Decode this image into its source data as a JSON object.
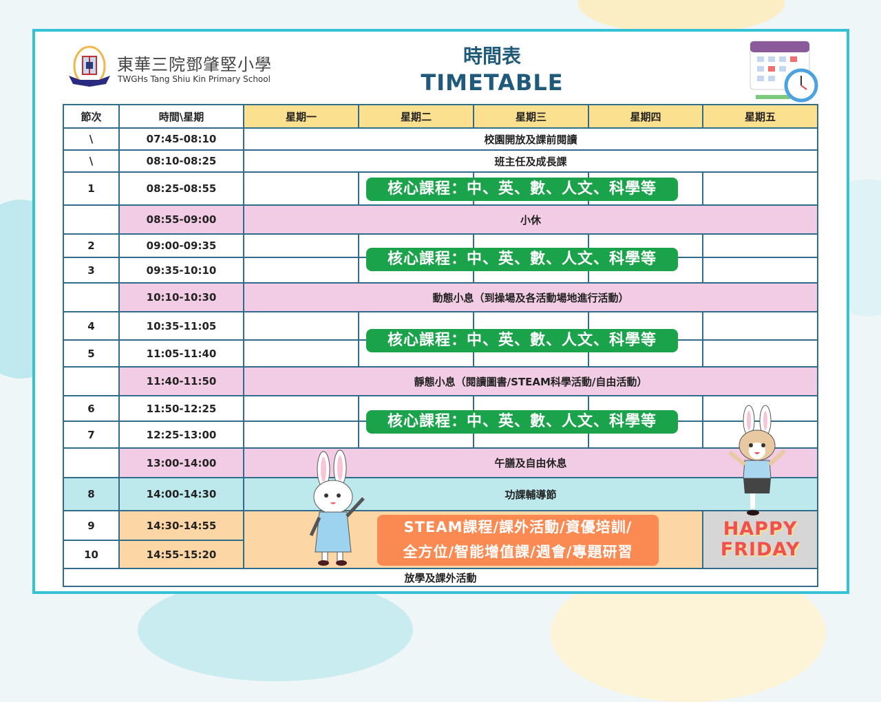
{
  "school": {
    "name_zh": "東華三院鄧肇堅小學",
    "name_en": "TWGHs Tang Shiu Kin Primary School"
  },
  "title": {
    "zh": "時間表",
    "en": "TIMETABLE"
  },
  "header": {
    "period": "節次",
    "time": "時間\\星期",
    "days": [
      "星期一",
      "星期二",
      "星期三",
      "星期四",
      "星期五"
    ]
  },
  "rows": [
    {
      "period": "\\",
      "time": "07:45-08:10",
      "activity": "校園開放及課前閱讀"
    },
    {
      "period": "\\",
      "time": "08:10-08:25",
      "activity": "班主任及成長課"
    },
    {
      "period": "1",
      "time": "08:25-08:55"
    },
    {
      "period": "",
      "time": "08:55-09:00",
      "activity": "小休"
    },
    {
      "period": "2",
      "time": "09:00-09:35"
    },
    {
      "period": "3",
      "time": "09:35-10:10"
    },
    {
      "period": "",
      "time": "10:10-10:30",
      "activity": "動態小息（到操場及各活動場地進行活動）"
    },
    {
      "period": "4",
      "time": "10:35-11:05"
    },
    {
      "period": "5",
      "time": "11:05-11:40"
    },
    {
      "period": "",
      "time": "11:40-11:50",
      "activity": "靜態小息（閱讀圖書/STEAM科學活動/自由活動）"
    },
    {
      "period": "6",
      "time": "11:50-12:25"
    },
    {
      "period": "7",
      "time": "12:25-13:00"
    },
    {
      "period": "",
      "time": "13:00-14:00",
      "activity": "午膳及自由休息"
    },
    {
      "period": "8",
      "time": "14:00-14:30",
      "activity": "功課輔導節"
    },
    {
      "period": "9",
      "time": "14:30-14:55"
    },
    {
      "period": "10",
      "time": "14:55-15:20"
    }
  ],
  "dismissal": "放學及課外活動",
  "core_label": "核心課程：中、英、數、人文、科學等",
  "afternoon_label": {
    "line1": "STEAM課程/課外活動/資優培訓/",
    "line2": "全方位/智能增值課/週會/專題研習"
  },
  "friday_label": {
    "line1": "HAPPY",
    "line2": "FRIDAY"
  },
  "colors": {
    "frame": "#36c2d5",
    "header_days": "#fbe08f",
    "break": "#f2cce4",
    "homework": "#bde8ec",
    "afternoon": "#fdd6a6",
    "core_pill": "#1aa34a",
    "afternoon_pill": "#fb8a52",
    "title": "#1f5a7a"
  },
  "icons": [
    "school-crest",
    "calendar-clock-icon",
    "bunny-girl-illustration",
    "bunny-boy-illustration"
  ]
}
